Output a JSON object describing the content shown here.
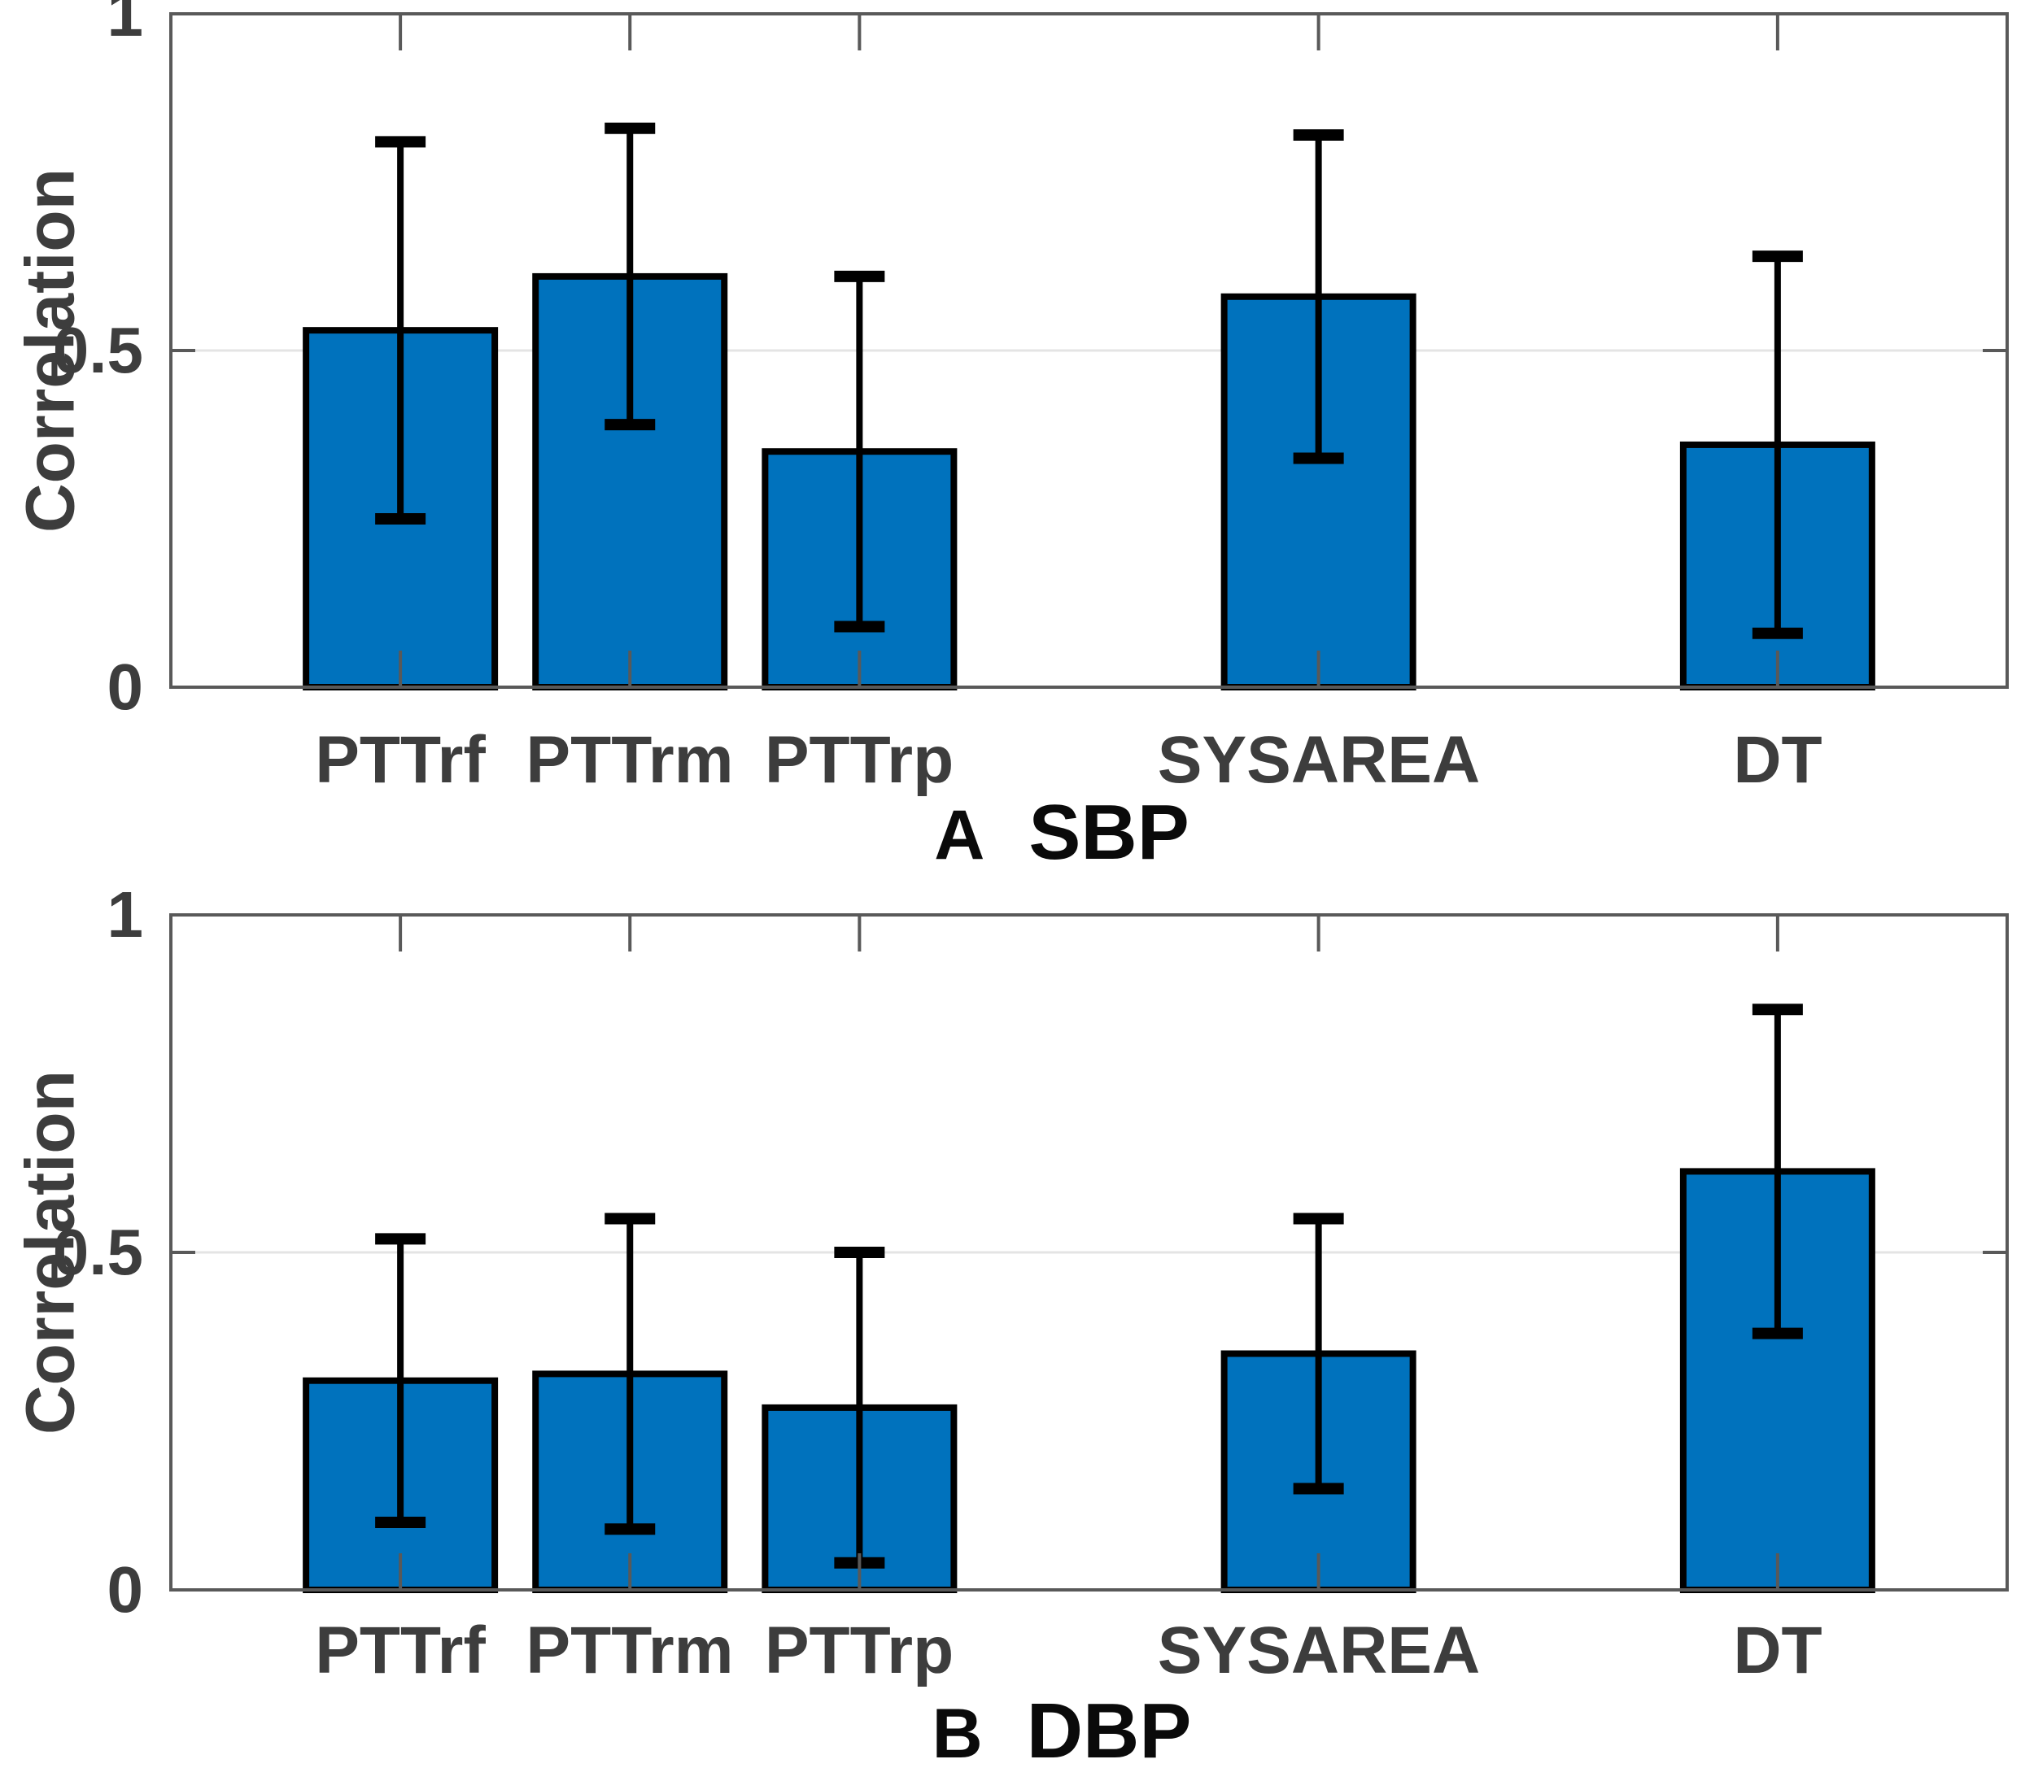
{
  "figure": {
    "bar_fill": "#0072BD",
    "bar_edge": "#000000",
    "errorbar_color": "#000000",
    "axis_color": "#595959",
    "grid_color": "#e4e4e4",
    "tick_text_color": "#3d3d3d",
    "title_text_color": "#0a0a0a"
  },
  "chart_data": [
    {
      "type": "bar",
      "panel_letter": "A",
      "title": "SBP",
      "ylabel": "Correlation",
      "categories": [
        "PTTrf",
        "PTTrm",
        "PTTrp",
        "SYSAREA",
        "DT"
      ],
      "values": [
        0.53,
        0.61,
        0.35,
        0.58,
        0.36
      ],
      "error": [
        0.28,
        0.22,
        0.26,
        0.24,
        0.28
      ],
      "error_low": [
        0.25,
        0.39,
        0.09,
        0.34,
        0.08
      ],
      "error_high": [
        0.81,
        0.83,
        0.61,
        0.82,
        0.64
      ],
      "yticks": [
        {
          "v": 0,
          "label": "0"
        },
        {
          "v": 0.5,
          "label": "0.5"
        },
        {
          "v": 1,
          "label": "1"
        }
      ],
      "ylim": [
        0,
        1
      ],
      "xlim": [
        0,
        8
      ],
      "x_positions": [
        1,
        2,
        3,
        5,
        7
      ],
      "grid": "horizontal gridline at 0.5 only",
      "legend": "none"
    },
    {
      "type": "bar",
      "panel_letter": "B",
      "title": "DBP",
      "ylabel": "Correlation",
      "categories": [
        "PTTrf",
        "PTTrm",
        "PTTrp",
        "SYSAREA",
        "DT"
      ],
      "values": [
        0.31,
        0.32,
        0.27,
        0.35,
        0.62
      ],
      "error": [
        0.21,
        0.23,
        0.23,
        0.2,
        0.24
      ],
      "error_low": [
        0.1,
        0.09,
        0.04,
        0.15,
        0.38
      ],
      "error_high": [
        0.52,
        0.55,
        0.5,
        0.55,
        0.86
      ],
      "yticks": [
        {
          "v": 0,
          "label": "0"
        },
        {
          "v": 0.5,
          "label": "0.5"
        },
        {
          "v": 1,
          "label": "1"
        }
      ],
      "ylim": [
        0,
        1
      ],
      "xlim": [
        0,
        8
      ],
      "x_positions": [
        1,
        2,
        3,
        5,
        7
      ],
      "grid": "horizontal gridline at 0.5 only",
      "legend": "none"
    }
  ]
}
